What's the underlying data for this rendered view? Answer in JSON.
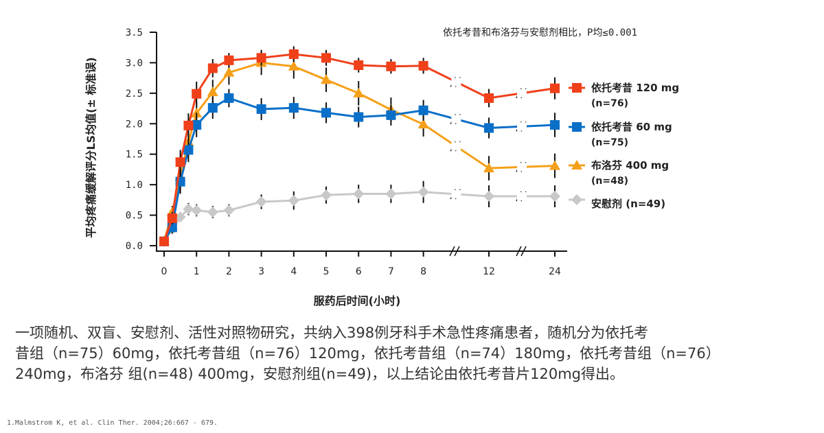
{
  "chart_data": {
    "type": "line",
    "title": "",
    "annotation": "依托考昔和布洛芬与安慰剂相比，P均≤0.001",
    "xlabel": "服药后时间(小时)",
    "ylabel": "平均疼痛缓解评分LS均值(± 标准误)",
    "ylim": [
      0,
      3.5
    ],
    "yticks": [
      "0.0",
      "0.5",
      "1.0",
      "1.5",
      "2.0",
      "2.5",
      "3.0",
      "3.5"
    ],
    "xticks": [
      "0",
      "1",
      "2",
      "3",
      "4",
      "5",
      "6",
      "7",
      "8",
      "12",
      "24"
    ],
    "x_axis_breaks": "between 8 and 12, between 12 and 24",
    "legend_position": "right",
    "x": [
      0,
      0.25,
      0.5,
      0.75,
      1,
      1.5,
      2,
      3,
      4,
      5,
      6,
      7,
      8,
      12,
      24
    ],
    "series": [
      {
        "name": "依托考昔 120 mg",
        "n": "(n=76)",
        "marker": "square",
        "color": "#f0401a",
        "values": [
          0.07,
          0.45,
          1.37,
          1.97,
          2.49,
          2.91,
          3.04,
          3.08,
          3.14,
          3.08,
          2.96,
          2.94,
          2.95,
          2.42,
          2.58
        ],
        "error": [
          0,
          0.1,
          0.2,
          0.2,
          0.2,
          0.15,
          0.12,
          0.13,
          0.13,
          0.13,
          0.12,
          0.12,
          0.13,
          0.15,
          0.18
        ]
      },
      {
        "name": "依托考昔 60 mg",
        "n": "(n=75)",
        "marker": "square",
        "color": "#0a6fc8",
        "values": [
          0.07,
          0.3,
          1.05,
          1.57,
          1.98,
          2.26,
          2.42,
          2.24,
          2.26,
          2.18,
          2.11,
          2.14,
          2.22,
          1.93,
          1.98
        ],
        "error": [
          0,
          0.1,
          0.2,
          0.2,
          0.2,
          0.18,
          0.15,
          0.18,
          0.18,
          0.17,
          0.17,
          0.17,
          0.17,
          0.17,
          0.2
        ]
      },
      {
        "name": "布洛芬 400 mg",
        "n": "(n=48)",
        "marker": "triangle",
        "color": "#f5a01a",
        "values": [
          0.07,
          0.55,
          1.13,
          1.7,
          2.17,
          2.52,
          2.84,
          3.0,
          2.94,
          2.72,
          2.5,
          2.23,
          1.99,
          1.27,
          1.31
        ],
        "error": [
          0,
          0.1,
          0.2,
          0.2,
          0.2,
          0.2,
          0.2,
          0.2,
          0.2,
          0.2,
          0.2,
          0.2,
          0.2,
          0.2,
          0.2
        ]
      },
      {
        "name": "安慰剂",
        "n": "(n=49)",
        "marker": "diamond",
        "color": "#c8c8c8",
        "values": [
          0.07,
          0.27,
          0.47,
          0.6,
          0.58,
          0.55,
          0.58,
          0.72,
          0.74,
          0.83,
          0.85,
          0.85,
          0.88,
          0.81,
          0.81
        ],
        "error": [
          0,
          0.05,
          0.08,
          0.1,
          0.1,
          0.1,
          0.1,
          0.12,
          0.15,
          0.14,
          0.15,
          0.15,
          0.18,
          0.18,
          0.18
        ]
      }
    ]
  },
  "legend": {
    "s0": {
      "name": "依托考昔 120 mg",
      "n": "(n=76)"
    },
    "s1": {
      "name": "依托考昔 60 mg",
      "n": "(n=75)"
    },
    "s2": {
      "name": "布洛芬 400 mg",
      "n": "(n=48)"
    },
    "s3": {
      "name": "安慰剂 (n=49)"
    }
  },
  "description": {
    "line1": "一项随机、双盲、安慰剂、活性对照物研究，共纳入398例牙科手术急性疼痛患者，随机分为依托考",
    "line2": "昔组（n=75）60mg，依托考昔组（n=76）120mg，依托考昔组（n=74）180mg，依托考昔组（n=76）",
    "line3": "240mg，布洛芬 组(n=48) 400mg，安慰剂组(n=49)，以上结论由依托考昔片120mg得出。"
  },
  "footnote": "1.Malmstrom K, et al. Clin Ther. 2004;26:667 - 679."
}
